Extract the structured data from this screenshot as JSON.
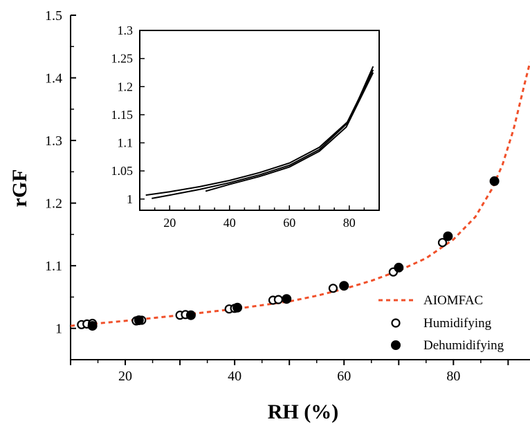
{
  "chart_data": {
    "type": "scatter",
    "xlabel": "RH (%)",
    "ylabel": "rGF",
    "xlim": [
      10,
      94
    ],
    "ylim": [
      0.95,
      1.5
    ],
    "x_ticks": [
      20,
      40,
      60,
      80
    ],
    "y_ticks": [
      1,
      1.1,
      1.2,
      1.3,
      1.4,
      1.5
    ],
    "y_tick_labels": [
      "1",
      "1.1",
      "1.2",
      "1.3",
      "1.4",
      "1.5"
    ],
    "legend_position": "bottom-right",
    "series": [
      {
        "name": "AIOMFAC",
        "kind": "line",
        "style": "dashed",
        "color": "#f0502a",
        "x": [
          10,
          20,
          30,
          40,
          50,
          55,
          60,
          65,
          70,
          75,
          80,
          84,
          87,
          89,
          91,
          93,
          94
        ],
        "y": [
          1.004,
          1.012,
          1.021,
          1.031,
          1.043,
          1.052,
          1.063,
          1.076,
          1.092,
          1.112,
          1.142,
          1.178,
          1.222,
          1.262,
          1.318,
          1.39,
          1.425
        ]
      },
      {
        "name": "Humidifying",
        "kind": "marker",
        "marker": "open-circle",
        "color": "#000000",
        "x": [
          12,
          13,
          14,
          22,
          23,
          30,
          31,
          39,
          40,
          47,
          48,
          58,
          69,
          78
        ],
        "y": [
          1.006,
          1.007,
          1.008,
          1.012,
          1.013,
          1.021,
          1.022,
          1.031,
          1.032,
          1.045,
          1.046,
          1.064,
          1.09,
          1.137
        ]
      },
      {
        "name": "Dehumidifying",
        "kind": "marker",
        "marker": "filled-circle",
        "color": "#000000",
        "x": [
          14,
          22.5,
          32,
          40.5,
          49.5,
          60,
          70,
          79,
          87.5
        ],
        "y": [
          1.004,
          1.013,
          1.021,
          1.033,
          1.047,
          1.068,
          1.097,
          1.147,
          1.235
        ]
      }
    ],
    "inset": {
      "type": "line",
      "xlim": [
        10,
        90
      ],
      "ylim": [
        0.98,
        1.3
      ],
      "x_ticks": [
        20,
        40,
        60,
        80
      ],
      "y_ticks": [
        1,
        1.05,
        1.1,
        1.15,
        1.2,
        1.25,
        1.3
      ],
      "y_tick_labels": [
        "1",
        "1.05",
        "1.1",
        "1.15",
        "1.2",
        "1.25",
        "1.3"
      ],
      "color": "#000000",
      "series": [
        {
          "x": [
            12,
            20,
            30,
            40,
            50,
            60,
            70,
            80,
            88
          ],
          "y": [
            1.007,
            1.013,
            1.022,
            1.033,
            1.047,
            1.064,
            1.092,
            1.14,
            1.236
          ]
        },
        {
          "x": [
            14,
            20,
            30,
            40,
            50,
            60,
            70,
            79,
            88
          ],
          "y": [
            1.001,
            1.007,
            1.017,
            1.029,
            1.043,
            1.06,
            1.088,
            1.133,
            1.23
          ]
        },
        {
          "x": [
            32,
            40,
            50,
            60,
            70,
            79,
            88
          ],
          "y": [
            1.014,
            1.026,
            1.04,
            1.057,
            1.085,
            1.128,
            1.225
          ]
        }
      ]
    }
  }
}
